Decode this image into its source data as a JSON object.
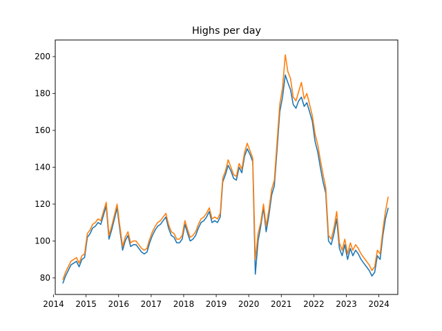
{
  "chart_data": {
    "type": "line",
    "title": "Highs per day",
    "xlabel": "",
    "ylabel": "",
    "x_ticks": [
      "2014",
      "2015",
      "2016",
      "2017",
      "2018",
      "2019",
      "2020",
      "2021",
      "2022",
      "2023",
      "2024"
    ],
    "y_ticks": [
      "80",
      "100",
      "120",
      "140",
      "160",
      "180",
      "200"
    ],
    "xlim": [
      "2014-01-20",
      "2024-08-01"
    ],
    "ylim": [
      71,
      209
    ],
    "grid": false,
    "legend": "none",
    "series": [
      {
        "color": "#1f77b4",
        "points": [
          [
            "2014-04-15",
            77
          ],
          [
            "2014-05-15",
            81
          ],
          [
            "2014-06-15",
            84
          ],
          [
            "2014-07-15",
            87
          ],
          [
            "2014-08-15",
            88
          ],
          [
            "2014-09-15",
            89
          ],
          [
            "2014-10-15",
            86
          ],
          [
            "2014-11-15",
            90
          ],
          [
            "2014-12-15",
            91
          ],
          [
            "2015-01-15",
            102
          ],
          [
            "2015-02-15",
            104
          ],
          [
            "2015-03-15",
            107
          ],
          [
            "2015-04-15",
            108
          ],
          [
            "2015-05-15",
            110
          ],
          [
            "2015-06-15",
            109
          ],
          [
            "2015-07-15",
            114
          ],
          [
            "2015-08-15",
            119
          ],
          [
            "2015-09-15",
            101
          ],
          [
            "2015-10-15",
            106
          ],
          [
            "2015-11-15",
            112
          ],
          [
            "2015-12-15",
            118
          ],
          [
            "2016-01-15",
            106
          ],
          [
            "2016-02-15",
            95
          ],
          [
            "2016-03-15",
            100
          ],
          [
            "2016-04-15",
            103
          ],
          [
            "2016-05-15",
            97
          ],
          [
            "2016-06-15",
            98
          ],
          [
            "2016-07-15",
            98
          ],
          [
            "2016-08-15",
            96
          ],
          [
            "2016-09-15",
            94
          ],
          [
            "2016-10-15",
            93
          ],
          [
            "2016-11-15",
            94
          ],
          [
            "2016-12-15",
            99
          ],
          [
            "2017-01-15",
            103
          ],
          [
            "2017-02-15",
            106
          ],
          [
            "2017-03-15",
            108
          ],
          [
            "2017-04-15",
            109
          ],
          [
            "2017-05-15",
            111
          ],
          [
            "2017-06-15",
            113
          ],
          [
            "2017-07-15",
            107
          ],
          [
            "2017-08-15",
            103
          ],
          [
            "2017-09-15",
            102
          ],
          [
            "2017-10-15",
            99
          ],
          [
            "2017-11-15",
            99
          ],
          [
            "2017-12-15",
            101
          ],
          [
            "2018-01-15",
            109
          ],
          [
            "2018-02-15",
            104
          ],
          [
            "2018-03-15",
            100
          ],
          [
            "2018-04-15",
            101
          ],
          [
            "2018-05-15",
            103
          ],
          [
            "2018-06-15",
            107
          ],
          [
            "2018-07-15",
            110
          ],
          [
            "2018-08-15",
            111
          ],
          [
            "2018-09-15",
            113
          ],
          [
            "2018-10-15",
            116
          ],
          [
            "2018-11-15",
            110
          ],
          [
            "2018-12-15",
            111
          ],
          [
            "2019-01-15",
            110
          ],
          [
            "2019-02-15",
            113
          ],
          [
            "2019-03-15",
            132
          ],
          [
            "2019-04-15",
            136
          ],
          [
            "2019-05-15",
            141
          ],
          [
            "2019-06-15",
            138
          ],
          [
            "2019-07-15",
            134
          ],
          [
            "2019-08-15",
            133
          ],
          [
            "2019-09-15",
            140
          ],
          [
            "2019-10-15",
            137
          ],
          [
            "2019-11-15",
            146
          ],
          [
            "2019-12-15",
            150
          ],
          [
            "2020-01-15",
            147
          ],
          [
            "2020-02-15",
            143
          ],
          [
            "2020-03-15",
            82
          ],
          [
            "2020-04-15",
            100
          ],
          [
            "2020-05-15",
            108
          ],
          [
            "2020-06-15",
            118
          ],
          [
            "2020-07-15",
            105
          ],
          [
            "2020-08-15",
            114
          ],
          [
            "2020-09-15",
            125
          ],
          [
            "2020-10-15",
            130
          ],
          [
            "2020-11-15",
            150
          ],
          [
            "2020-12-15",
            170
          ],
          [
            "2021-01-15",
            178
          ],
          [
            "2021-02-15",
            190
          ],
          [
            "2021-03-15",
            186
          ],
          [
            "2021-04-15",
            182
          ],
          [
            "2021-05-15",
            174
          ],
          [
            "2021-06-15",
            172
          ],
          [
            "2021-07-15",
            176
          ],
          [
            "2021-08-15",
            178
          ],
          [
            "2021-09-15",
            173
          ],
          [
            "2021-10-15",
            175
          ],
          [
            "2021-11-15",
            170
          ],
          [
            "2021-12-15",
            165
          ],
          [
            "2022-01-15",
            154
          ],
          [
            "2022-02-15",
            148
          ],
          [
            "2022-03-15",
            140
          ],
          [
            "2022-04-15",
            132
          ],
          [
            "2022-05-15",
            126
          ],
          [
            "2022-06-15",
            100
          ],
          [
            "2022-07-15",
            98
          ],
          [
            "2022-08-15",
            104
          ],
          [
            "2022-09-15",
            112
          ],
          [
            "2022-10-15",
            96
          ],
          [
            "2022-11-15",
            92
          ],
          [
            "2022-12-15",
            98
          ],
          [
            "2023-01-15",
            90
          ],
          [
            "2023-02-15",
            96
          ],
          [
            "2023-03-15",
            92
          ],
          [
            "2023-04-15",
            95
          ],
          [
            "2023-05-15",
            93
          ],
          [
            "2023-06-15",
            90
          ],
          [
            "2023-07-15",
            88
          ],
          [
            "2023-08-15",
            86
          ],
          [
            "2023-09-15",
            84
          ],
          [
            "2023-10-15",
            81
          ],
          [
            "2023-11-15",
            83
          ],
          [
            "2023-12-15",
            92
          ],
          [
            "2024-01-15",
            90
          ],
          [
            "2024-02-15",
            103
          ],
          [
            "2024-03-15",
            112
          ],
          [
            "2024-04-15",
            118
          ]
        ]
      },
      {
        "color": "#ff7f0e",
        "points": [
          [
            "2014-04-15",
            79
          ],
          [
            "2014-05-15",
            83
          ],
          [
            "2014-06-15",
            86
          ],
          [
            "2014-07-15",
            89
          ],
          [
            "2014-08-15",
            90
          ],
          [
            "2014-09-15",
            91
          ],
          [
            "2014-10-15",
            88
          ],
          [
            "2014-11-15",
            92
          ],
          [
            "2014-12-15",
            93
          ],
          [
            "2015-01-15",
            104
          ],
          [
            "2015-02-15",
            106
          ],
          [
            "2015-03-15",
            109
          ],
          [
            "2015-04-15",
            110
          ],
          [
            "2015-05-15",
            112
          ],
          [
            "2015-06-15",
            111
          ],
          [
            "2015-07-15",
            116
          ],
          [
            "2015-08-15",
            121
          ],
          [
            "2015-09-15",
            103
          ],
          [
            "2015-10-15",
            108
          ],
          [
            "2015-11-15",
            114
          ],
          [
            "2015-12-15",
            120
          ],
          [
            "2016-01-15",
            108
          ],
          [
            "2016-02-15",
            97
          ],
          [
            "2016-03-15",
            102
          ],
          [
            "2016-04-15",
            105
          ],
          [
            "2016-05-15",
            99
          ],
          [
            "2016-06-15",
            100
          ],
          [
            "2016-07-15",
            100
          ],
          [
            "2016-08-15",
            98
          ],
          [
            "2016-09-15",
            96
          ],
          [
            "2016-10-15",
            95
          ],
          [
            "2016-11-15",
            96
          ],
          [
            "2016-12-15",
            101
          ],
          [
            "2017-01-15",
            105
          ],
          [
            "2017-02-15",
            108
          ],
          [
            "2017-03-15",
            110
          ],
          [
            "2017-04-15",
            111
          ],
          [
            "2017-05-15",
            113
          ],
          [
            "2017-06-15",
            115
          ],
          [
            "2017-07-15",
            109
          ],
          [
            "2017-08-15",
            105
          ],
          [
            "2017-09-15",
            104
          ],
          [
            "2017-10-15",
            101
          ],
          [
            "2017-11-15",
            101
          ],
          [
            "2017-12-15",
            103
          ],
          [
            "2018-01-15",
            111
          ],
          [
            "2018-02-15",
            106
          ],
          [
            "2018-03-15",
            102
          ],
          [
            "2018-04-15",
            103
          ],
          [
            "2018-05-15",
            105
          ],
          [
            "2018-06-15",
            109
          ],
          [
            "2018-07-15",
            112
          ],
          [
            "2018-08-15",
            113
          ],
          [
            "2018-09-15",
            115
          ],
          [
            "2018-10-15",
            118
          ],
          [
            "2018-11-15",
            112
          ],
          [
            "2018-12-15",
            113
          ],
          [
            "2019-01-15",
            112
          ],
          [
            "2019-02-15",
            115
          ],
          [
            "2019-03-15",
            134
          ],
          [
            "2019-04-15",
            138
          ],
          [
            "2019-05-15",
            144
          ],
          [
            "2019-06-15",
            140
          ],
          [
            "2019-07-15",
            136
          ],
          [
            "2019-08-15",
            135
          ],
          [
            "2019-09-15",
            142
          ],
          [
            "2019-10-15",
            139
          ],
          [
            "2019-11-15",
            148
          ],
          [
            "2019-12-15",
            153
          ],
          [
            "2020-01-15",
            149
          ],
          [
            "2020-02-15",
            145
          ],
          [
            "2020-03-15",
            90
          ],
          [
            "2020-04-15",
            104
          ],
          [
            "2020-05-15",
            110
          ],
          [
            "2020-06-15",
            120
          ],
          [
            "2020-07-15",
            108
          ],
          [
            "2020-08-15",
            117
          ],
          [
            "2020-09-15",
            128
          ],
          [
            "2020-10-15",
            133
          ],
          [
            "2020-11-15",
            154
          ],
          [
            "2020-12-15",
            174
          ],
          [
            "2021-01-15",
            183
          ],
          [
            "2021-02-15",
            201
          ],
          [
            "2021-03-15",
            192
          ],
          [
            "2021-04-15",
            188
          ],
          [
            "2021-05-15",
            178
          ],
          [
            "2021-06-15",
            176
          ],
          [
            "2021-07-15",
            181
          ],
          [
            "2021-08-15",
            186
          ],
          [
            "2021-09-15",
            177
          ],
          [
            "2021-10-15",
            180
          ],
          [
            "2021-11-15",
            174
          ],
          [
            "2021-12-15",
            168
          ],
          [
            "2022-01-15",
            158
          ],
          [
            "2022-02-15",
            152
          ],
          [
            "2022-03-15",
            144
          ],
          [
            "2022-04-15",
            136
          ],
          [
            "2022-05-15",
            129
          ],
          [
            "2022-06-15",
            103
          ],
          [
            "2022-07-15",
            101
          ],
          [
            "2022-08-15",
            107
          ],
          [
            "2022-09-15",
            116
          ],
          [
            "2022-10-15",
            99
          ],
          [
            "2022-11-15",
            95
          ],
          [
            "2022-12-15",
            101
          ],
          [
            "2023-01-15",
            93
          ],
          [
            "2023-02-15",
            99
          ],
          [
            "2023-03-15",
            95
          ],
          [
            "2023-04-15",
            98
          ],
          [
            "2023-05-15",
            96
          ],
          [
            "2023-06-15",
            93
          ],
          [
            "2023-07-15",
            91
          ],
          [
            "2023-08-15",
            89
          ],
          [
            "2023-09-15",
            87
          ],
          [
            "2023-10-15",
            84
          ],
          [
            "2023-11-15",
            86
          ],
          [
            "2023-12-15",
            95
          ],
          [
            "2024-01-15",
            93
          ],
          [
            "2024-02-15",
            106
          ],
          [
            "2024-03-15",
            116
          ],
          [
            "2024-04-15",
            124
          ]
        ]
      }
    ]
  }
}
